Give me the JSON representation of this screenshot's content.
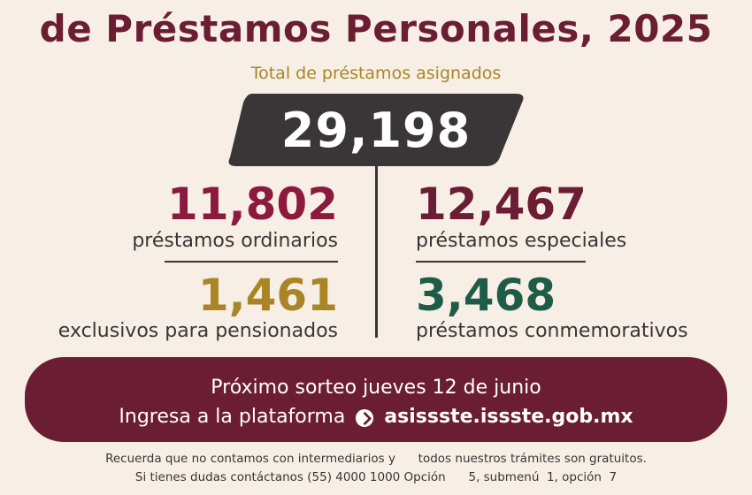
{
  "header": {
    "title": "de Préstamos Personales, 2025",
    "subtitle": "Total de préstamos asignados"
  },
  "total": {
    "value": "29,198"
  },
  "stats": {
    "ordinarios": {
      "value": "11,802",
      "label": "préstamos ordinarios",
      "color": "#8b1a3e"
    },
    "pensionados": {
      "value": "1,461",
      "label": "exclusivos para pensionados",
      "color": "#a98526"
    },
    "especiales": {
      "value": "12,467",
      "label": "préstamos especiales",
      "color": "#6b1d33"
    },
    "conmemorativos": {
      "value": "3,468",
      "label": "préstamos conmemorativos",
      "color": "#1f5c47"
    }
  },
  "banner": {
    "line1": "Próximo sorteo jueves 12 de junio",
    "line2_prefix": "Ingresa a la plataforma",
    "link_icon": "link-icon",
    "url": "asissste.issste.gob.mx"
  },
  "footer": {
    "line1": "Recuerda que no contamos con intermediarios y      todos nuestros trámites son gratuitos.",
    "line2": "Si tienes dudas contáctanos (55) 4000 1000 Opción      5, submenú  1, opción  7"
  },
  "colors": {
    "background": "#f7efe6",
    "maroon": "#6b1d33",
    "gold": "#a88624",
    "dark": "#3a3536"
  }
}
